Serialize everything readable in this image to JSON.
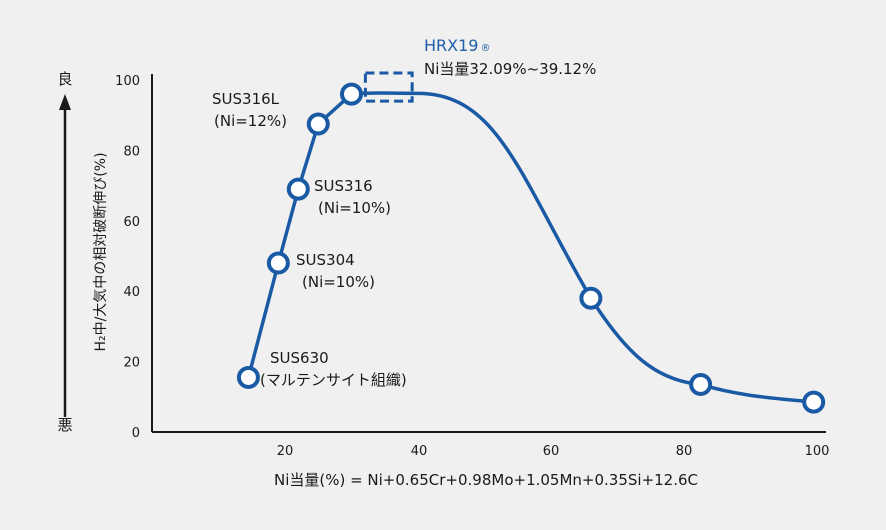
{
  "colors": {
    "accent": "#1a5aa5",
    "axis": "#1a1a1a",
    "background": "#f0f0f0",
    "text": "#1a1a1a"
  },
  "chart_data": {
    "type": "line",
    "xlabel": "Ni当量(%) = Ni+0.65Cr+0.98Mo+1.05Mn+0.35Si+12.6C",
    "ylabel": "H₂中/大気中の相対破断伸び(%)",
    "y_direction_labels": {
      "good": "良",
      "bad": "悪"
    },
    "xlim": [
      8,
      100
    ],
    "ylim": [
      0,
      100
    ],
    "x_ticks": [
      "20",
      "40",
      "60",
      "80",
      "100"
    ],
    "y_ticks": [
      "0",
      "20",
      "40",
      "60",
      "80",
      "100"
    ],
    "grid": false,
    "series": [
      {
        "points": [
          {
            "x": 14.5,
            "y": 15.5
          },
          {
            "x": 19,
            "y": 48
          },
          {
            "x": 22,
            "y": 69
          },
          {
            "x": 25,
            "y": 87.5
          },
          {
            "x": 30,
            "y": 96
          },
          {
            "x": 66,
            "y": 38
          },
          {
            "x": 82.5,
            "y": 13.5
          },
          {
            "x": 99.5,
            "y": 8.5
          }
        ]
      }
    ],
    "highlight_box": {
      "x_range": [
        32.09,
        39.12
      ],
      "y_range": [
        94,
        102
      ]
    },
    "annotations": [
      {
        "lines": [
          "SUS630",
          "(マルテンサイト組織)"
        ]
      },
      {
        "lines": [
          "SUS304",
          "(Ni=10%)"
        ]
      },
      {
        "lines": [
          "SUS316",
          "(Ni=10%)"
        ]
      },
      {
        "lines": [
          "SUS316L",
          "(Ni=12%)"
        ]
      },
      {
        "lines": [
          "Ni当量32.09%~39.12%"
        ],
        "title": "HRX19",
        "title_mark": "®"
      }
    ]
  }
}
